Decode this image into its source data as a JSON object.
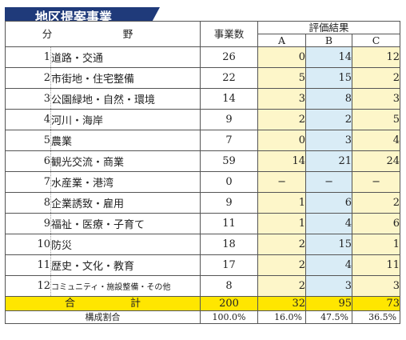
{
  "title": "地区提案事業",
  "headers": {
    "field": "分　野",
    "count": "事業数",
    "evaluation": "評価結果",
    "a": "A",
    "b": "B",
    "c": "C"
  },
  "rows": [
    {
      "no": "1",
      "name": "道路・交通",
      "count": "26",
      "a": "0",
      "b": "14",
      "c": "12"
    },
    {
      "no": "2",
      "name": "市街地・住宅整備",
      "count": "22",
      "a": "5",
      "b": "15",
      "c": "2"
    },
    {
      "no": "3",
      "name": "公園緑地・自然・環境",
      "count": "14",
      "a": "3",
      "b": "8",
      "c": "3"
    },
    {
      "no": "4",
      "name": "河川・海岸",
      "count": "9",
      "a": "2",
      "b": "2",
      "c": "5"
    },
    {
      "no": "5",
      "name": "農業",
      "count": "7",
      "a": "0",
      "b": "3",
      "c": "4"
    },
    {
      "no": "6",
      "name": "観光交流・商業",
      "count": "59",
      "a": "14",
      "b": "21",
      "c": "24"
    },
    {
      "no": "7",
      "name": "水産業・港湾",
      "count": "0",
      "a": "−",
      "b": "−",
      "c": "−"
    },
    {
      "no": "8",
      "name": "企業誘致・雇用",
      "count": "9",
      "a": "1",
      "b": "6",
      "c": "2"
    },
    {
      "no": "9",
      "name": "福祉・医療・子育て",
      "count": "11",
      "a": "1",
      "b": "4",
      "c": "6"
    },
    {
      "no": "10",
      "name": "防災",
      "count": "18",
      "a": "2",
      "b": "15",
      "c": "1"
    },
    {
      "no": "11",
      "name": "歴史・文化・教育",
      "count": "17",
      "a": "2",
      "b": "4",
      "c": "11"
    },
    {
      "no": "12",
      "name": "コミュニティ・施設整備・その他",
      "count": "8",
      "a": "2",
      "b": "3",
      "c": "3"
    }
  ],
  "total": {
    "label": "合　計",
    "count": "200",
    "a": "32",
    "b": "95",
    "c": "73"
  },
  "ratio": {
    "label": "構成割合",
    "count": "100.0%",
    "a": "16.0%",
    "b": "47.5%",
    "c": "36.5%"
  },
  "colors": {
    "title_bg": "#1f3a7a",
    "col_a_c": "#fdf6c9",
    "col_b": "#d9ecf6",
    "total": "#ffe600"
  }
}
